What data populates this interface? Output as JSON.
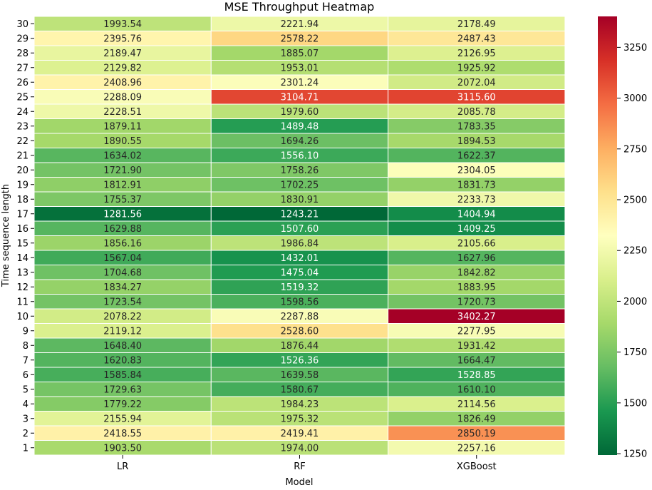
{
  "chart_data": {
    "type": "heatmap",
    "title": "MSE Throughput Heatmap",
    "xlabel": "Model",
    "ylabel": "Time sequence length",
    "columns": [
      "LR",
      "RF",
      "XGBoost"
    ],
    "rows": [
      "30",
      "29",
      "28",
      "27",
      "26",
      "25",
      "24",
      "23",
      "22",
      "21",
      "20",
      "19",
      "18",
      "17",
      "16",
      "15",
      "14",
      "13",
      "12",
      "11",
      "10",
      "9",
      "8",
      "7",
      "6",
      "5",
      "4",
      "3",
      "2",
      "1"
    ],
    "values": [
      [
        1993.54,
        2221.94,
        2178.49
      ],
      [
        2395.76,
        2578.22,
        2487.43
      ],
      [
        2189.47,
        1885.07,
        2126.95
      ],
      [
        2129.82,
        1953.01,
        1925.92
      ],
      [
        2408.96,
        2301.24,
        2072.04
      ],
      [
        2288.09,
        3104.71,
        3115.6
      ],
      [
        2228.51,
        1979.6,
        2085.78
      ],
      [
        1879.11,
        1489.48,
        1783.35
      ],
      [
        1890.55,
        1694.26,
        1894.53
      ],
      [
        1634.02,
        1556.1,
        1622.37
      ],
      [
        1721.9,
        1758.26,
        2304.05
      ],
      [
        1812.91,
        1702.25,
        1831.73
      ],
      [
        1755.37,
        1830.91,
        2233.73
      ],
      [
        1281.56,
        1243.21,
        1404.94
      ],
      [
        1629.88,
        1507.6,
        1409.25
      ],
      [
        1856.16,
        1986.84,
        2105.66
      ],
      [
        1567.04,
        1432.01,
        1627.96
      ],
      [
        1704.68,
        1475.04,
        1842.82
      ],
      [
        1834.27,
        1519.32,
        1883.95
      ],
      [
        1723.54,
        1598.56,
        1720.73
      ],
      [
        2078.22,
        2287.88,
        3402.27
      ],
      [
        2119.12,
        2528.6,
        2277.95
      ],
      [
        1648.4,
        1876.44,
        1931.42
      ],
      [
        1620.83,
        1526.36,
        1664.47
      ],
      [
        1585.84,
        1639.58,
        1528.85
      ],
      [
        1729.63,
        1580.67,
        1610.1
      ],
      [
        1779.22,
        1984.23,
        2114.56
      ],
      [
        2155.94,
        1975.32,
        1826.49
      ],
      [
        2418.55,
        2419.41,
        2850.19
      ],
      [
        1903.5,
        1974.0,
        2257.16
      ]
    ],
    "colormap": "RdYlGn_r",
    "colorbar": {
      "range": [
        1243.21,
        3402.27
      ],
      "ticks": [
        1250,
        1500,
        1750,
        2000,
        2250,
        2500,
        2750,
        3000,
        3250
      ]
    },
    "annotations": true,
    "annotation_format": "2 decimals",
    "colors": {
      "low": "#006837",
      "high": "#a50026",
      "cell_border": "#ffffff",
      "text_dark": "#262626",
      "text_light": "#ffffff"
    },
    "grid": false,
    "legend": "colorbar-right"
  }
}
